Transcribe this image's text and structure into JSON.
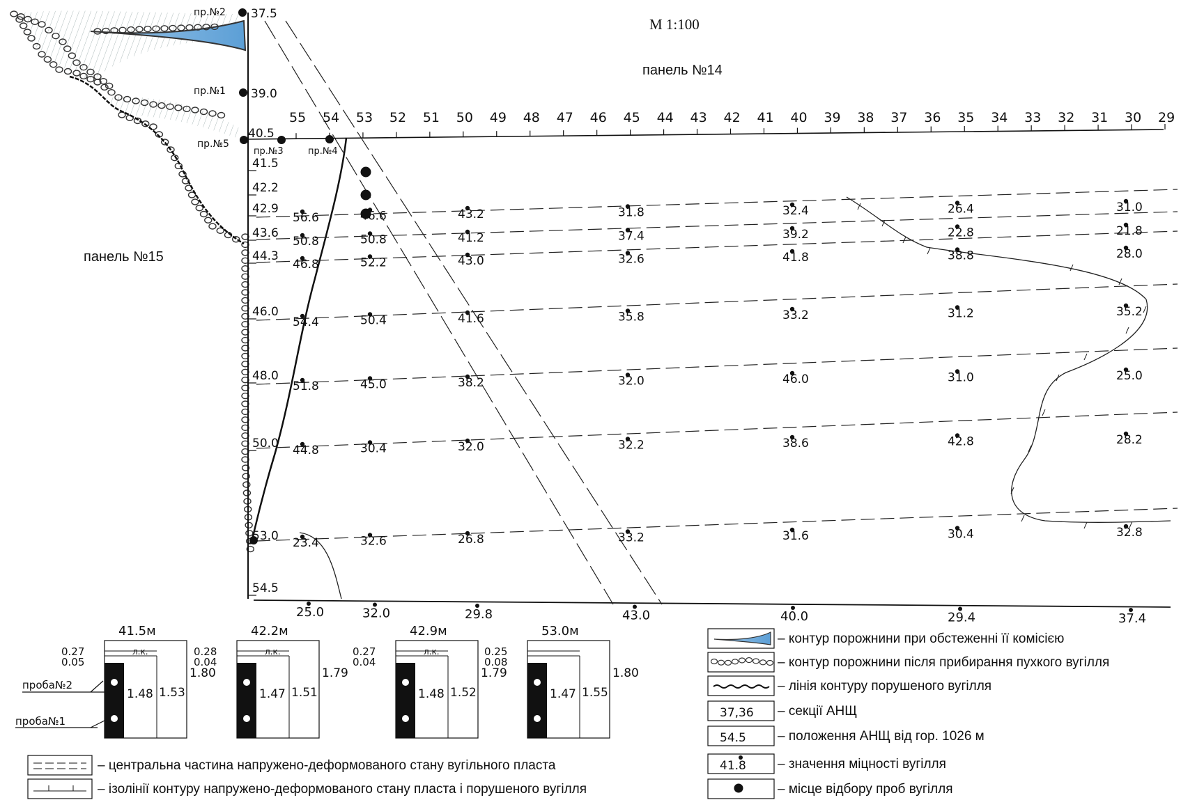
{
  "scale_label": "М 1:100",
  "panel_top": "панель №14",
  "panel_left": "панель №15",
  "profiles": {
    "p2": "пр.№2",
    "p1": "пр.№1",
    "p5": "пр.№5",
    "p3": "пр.№3",
    "p4": "пр.№4"
  },
  "anchor_top_values": [
    "37.5",
    "39.0",
    "40.5"
  ],
  "sections_top": [
    "55",
    "54",
    "53",
    "52",
    "51",
    "50",
    "49",
    "48",
    "47",
    "46",
    "45",
    "44",
    "43",
    "42",
    "41",
    "40",
    "39",
    "38",
    "37",
    "36",
    "35",
    "34",
    "33",
    "32",
    "31",
    "30",
    "29"
  ],
  "row_labels": [
    "41.5",
    "42.2",
    "42.9",
    "43.6",
    "44.3",
    "46.0",
    "48.0",
    "50.0",
    "53.0",
    "54.5"
  ],
  "bottom_values": [
    "25.0",
    "32.0",
    "29.8",
    "43.0",
    "40.0",
    "29.4",
    "37.4"
  ],
  "strength": [
    [
      "56.6",
      "46.6",
      "43.2",
      "31.8",
      "32.4",
      "26.4",
      "31.0"
    ],
    [
      "50.8",
      "50.8",
      "41.2",
      "37.4",
      "39.2",
      "22.8",
      "21.8"
    ],
    [
      "46.8",
      "52.2",
      "43.0",
      "32.6",
      "41.8",
      "38.8",
      "28.0"
    ],
    [
      "54.4",
      "50.4",
      "41.6",
      "35.8",
      "33.2",
      "31.2",
      "35.2"
    ],
    [
      "51.8",
      "45.0",
      "38.2",
      "32.0",
      "46.0",
      "31.0",
      "25.0"
    ],
    [
      "44.8",
      "30.4",
      "32.0",
      "32.2",
      "38.6",
      "42.8",
      "28.2"
    ],
    [
      "23.4",
      "32.6",
      "26.8",
      "33.2",
      "31.6",
      "30.4",
      "32.8"
    ]
  ],
  "sample_columns": [
    {
      "title": "41.5м",
      "top": "0.27",
      "sub": "0.05",
      "thick1": "1.48",
      "thick2": "1.53",
      "total": "1.80",
      "jk": "л.к."
    },
    {
      "title": "42.2м",
      "top": "0.28",
      "sub": "0.04",
      "thick1": "1.47",
      "thick2": "1.51",
      "total": "1.79",
      "jk": "л.к."
    },
    {
      "title": "42.9м",
      "top": "0.27",
      "sub": "0.04",
      "thick1": "1.48",
      "thick2": "1.52",
      "total": "1.79",
      "jk": "л.к."
    },
    {
      "title": "53.0м",
      "top": "0.25",
      "sub": "0.08",
      "thick1": "1.47",
      "thick2": "1.55",
      "total": "1.80",
      "jk": ""
    }
  ],
  "sample_labels": {
    "s2": "проба№2",
    "s1": "проба№1"
  },
  "legend_right": [
    {
      "sample": "",
      "text": "– контур порожнини при обстеженні її комісією"
    },
    {
      "sample": "",
      "text": "– контур порожнини після прибирання пухкого вугілля"
    },
    {
      "sample": "",
      "text": "– лінія контуру порушеного вугілля"
    },
    {
      "sample": "37,36",
      "text": "– секції АНЩ"
    },
    {
      "sample": "54.5",
      "text": "– положення АНЩ від гор. 1026 м"
    },
    {
      "sample": "41.8",
      "text": "– значення міцності вугілля"
    },
    {
      "sample": "",
      "text": "– місце відбору проб вугілля"
    }
  ],
  "legend_left": [
    {
      "text": "– центральна частина напружено-деформованого стану вугільного пласта"
    },
    {
      "text": "– ізолінії контуру напружено-деформованого стану пласта і порушеного вугілля"
    }
  ]
}
